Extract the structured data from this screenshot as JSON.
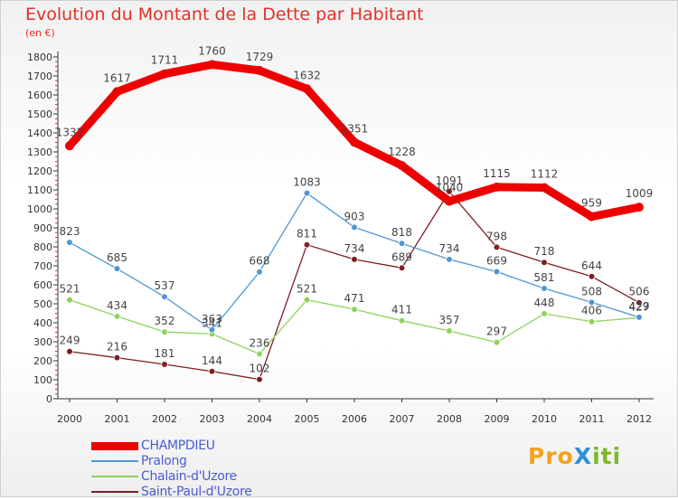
{
  "title": "Evolution du Montant de la Dette par Habitant",
  "unit_label": "(en €)",
  "logo_text": "ProXiti",
  "chart_data": {
    "type": "line",
    "title": "Evolution du Montant de la Dette par Habitant",
    "ylabel": "(en €)",
    "xlabel": "",
    "ylim": [
      0,
      1800
    ],
    "yticks": [
      0,
      100,
      200,
      300,
      400,
      500,
      600,
      700,
      800,
      900,
      1000,
      1100,
      1200,
      1300,
      1400,
      1500,
      1600,
      1700,
      1800
    ],
    "grid": false,
    "legend_position": "bottom-left",
    "x": [
      "2000",
      "2001",
      "2002",
      "2003",
      "2004",
      "2005",
      "2006",
      "2007",
      "2008",
      "2009",
      "2010",
      "2011",
      "2012"
    ],
    "series": [
      {
        "name": "CHAMPDIEU",
        "color": "#ee0000",
        "values": [
          1332,
          1617,
          1711,
          1760,
          1729,
          1632,
          1351,
          1228,
          1040,
          1115,
          1112,
          959,
          1009
        ]
      },
      {
        "name": "Pralong",
        "color": "#4f97d4",
        "values": [
          823,
          685,
          537,
          363,
          668,
          1083,
          903,
          818,
          734,
          669,
          581,
          508,
          429
        ]
      },
      {
        "name": "Chalain-d'Uzore",
        "color": "#8ed35c",
        "values": [
          521,
          434,
          352,
          341,
          236,
          521,
          471,
          411,
          357,
          297,
          448,
          406,
          427
        ]
      },
      {
        "name": "Saint-Paul-d'Uzore",
        "color": "#7b1f22",
        "values": [
          249,
          216,
          181,
          144,
          102,
          811,
          734,
          689,
          1091,
          798,
          718,
          644,
          506
        ]
      }
    ]
  }
}
